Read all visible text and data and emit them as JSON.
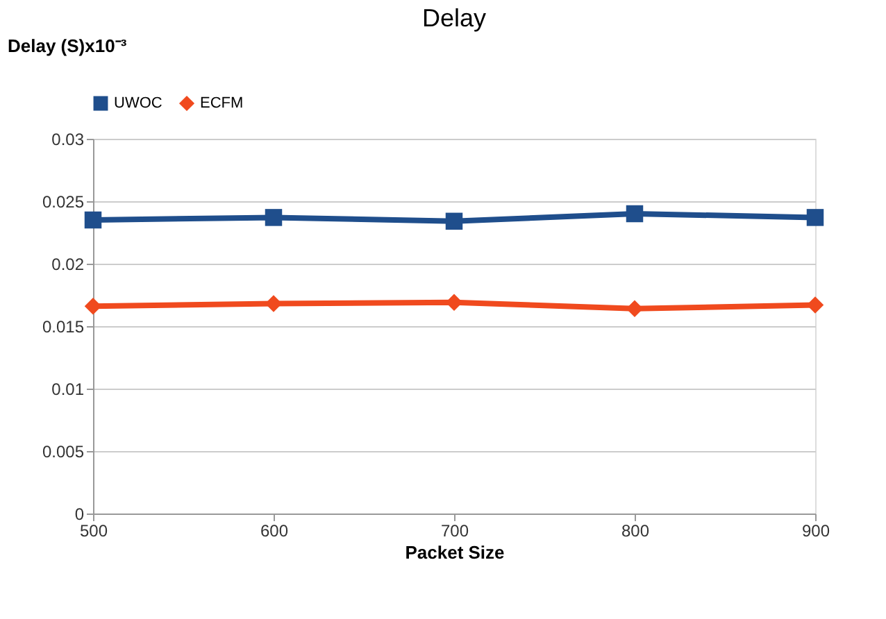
{
  "chart_data": {
    "type": "line",
    "title": "Delay",
    "xlabel": "Packet Size",
    "ylabel": "Delay (S)x10⁻³",
    "x": [
      500,
      600,
      700,
      800,
      900
    ],
    "series": [
      {
        "name": "UWOC",
        "color": "#1f4e8c",
        "marker": "square",
        "values": [
          0.0235,
          0.0237,
          0.0234,
          0.024,
          0.0237
        ]
      },
      {
        "name": "ECFM",
        "color": "#f04a1e",
        "marker": "diamond",
        "values": [
          0.0166,
          0.0168,
          0.0169,
          0.0164,
          0.0167
        ]
      }
    ],
    "xlim": [
      500,
      900
    ],
    "xticks": [
      500,
      600,
      700,
      800,
      900
    ],
    "ylim": [
      0,
      0.03
    ],
    "yticks": [
      0,
      0.005,
      0.01,
      0.015,
      0.02,
      0.025,
      0.03
    ],
    "grid": "y",
    "legend": "top",
    "line_style": "solid"
  }
}
